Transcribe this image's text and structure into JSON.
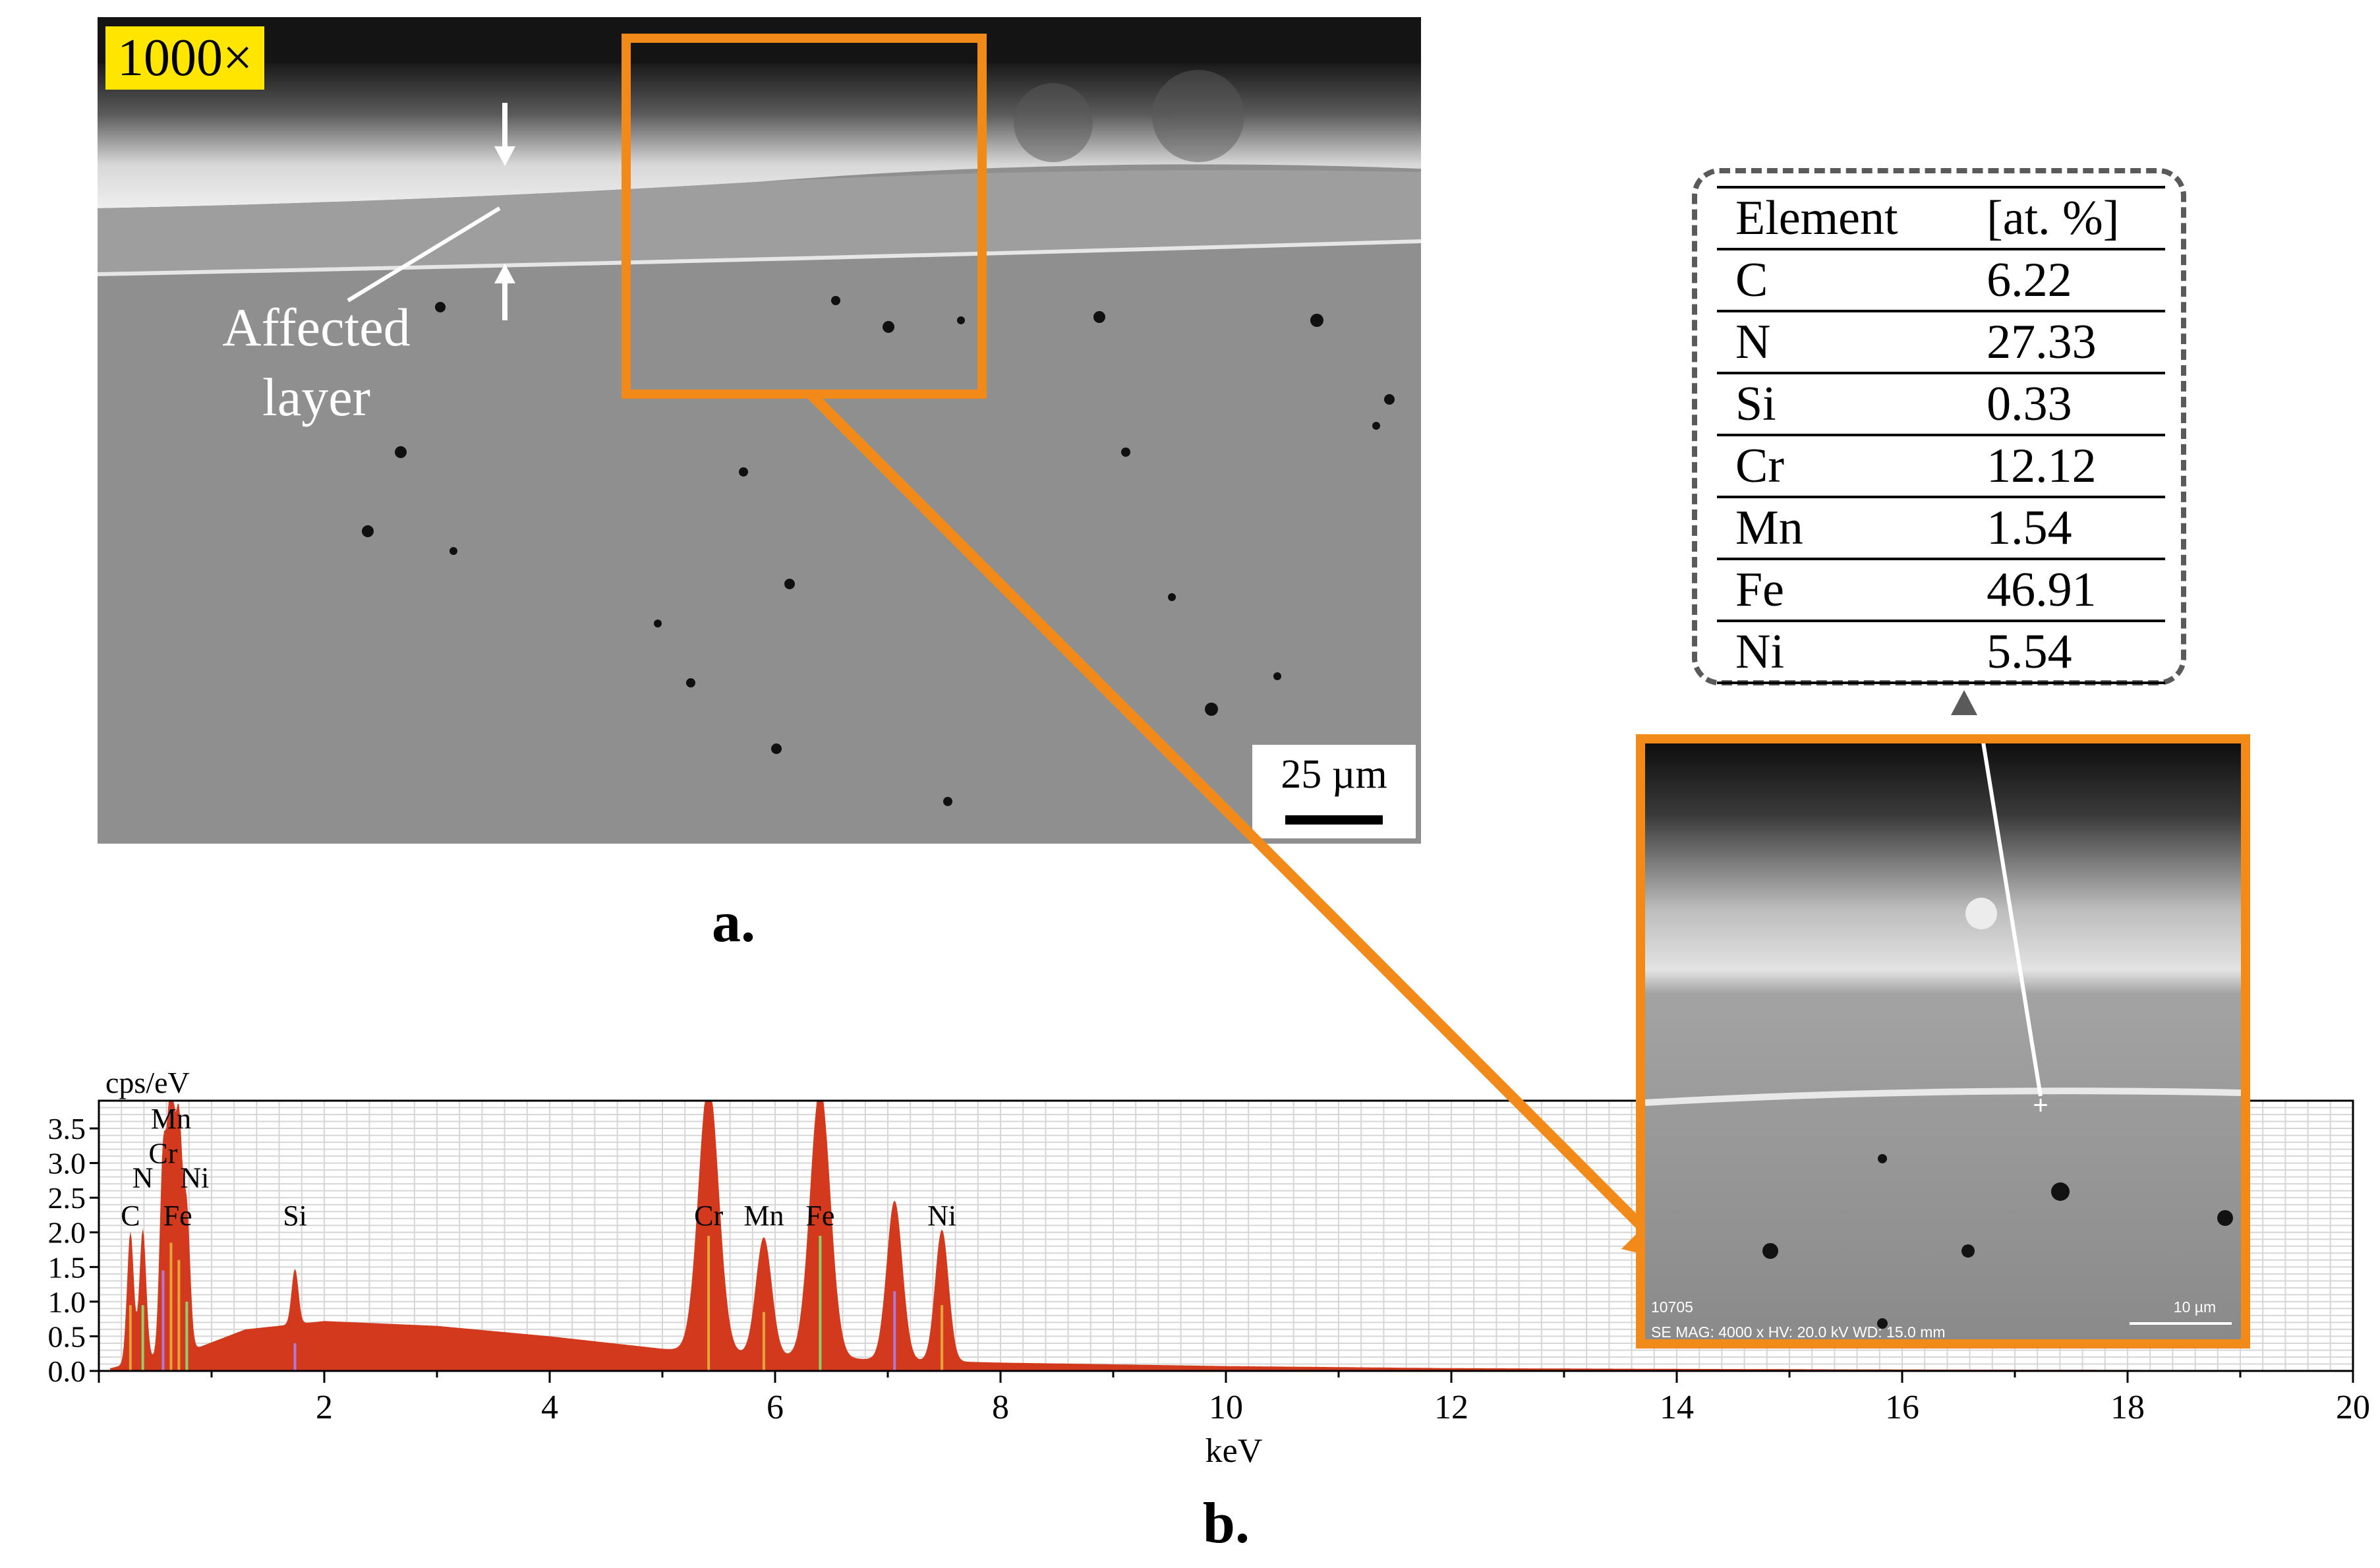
{
  "panel_a": {
    "magnification": "1000×",
    "scale_bar": "25 µm",
    "annotation_line1": "Affected",
    "annotation_line2": "layer",
    "caption": "a."
  },
  "inset": {
    "meta_id": "10705",
    "meta_line": "SE  MAG: 4000 x  HV: 20.0 kV  WD: 15.0 mm",
    "scale_bar": "10 µm"
  },
  "composition_table": {
    "headers": [
      "Element",
      "[at. %]"
    ],
    "rows": [
      {
        "element": "C",
        "value": "6.22"
      },
      {
        "element": "N",
        "value": "27.33"
      },
      {
        "element": "Si",
        "value": "0.33"
      },
      {
        "element": "Cr",
        "value": "12.12"
      },
      {
        "element": "Mn",
        "value": "1.54"
      },
      {
        "element": "Fe",
        "value": "46.91"
      },
      {
        "element": "Ni",
        "value": "5.54"
      }
    ]
  },
  "colors": {
    "accent_orange": "#f28a1a",
    "spectrum_red": "#d3391c",
    "callout_gray": "#5a5a5a"
  },
  "chart_data": {
    "type": "area",
    "ylabel": "cps/eV",
    "xlabel": "keV",
    "xlim": [
      0,
      20
    ],
    "ylim": [
      0,
      3.9
    ],
    "x_ticks": [
      2,
      4,
      6,
      8,
      10,
      12,
      14,
      16,
      18,
      20
    ],
    "y_ticks": [
      0.0,
      0.5,
      1.0,
      1.5,
      2.0,
      2.5,
      3.0,
      3.5
    ],
    "y_tick_labels": [
      "0.0",
      "0.5",
      "1.0",
      "1.5",
      "2.0",
      "2.5",
      "3.0",
      "3.5"
    ],
    "grid": true,
    "background_level": [
      {
        "kev": 0.9,
        "cps": 0.35
      },
      {
        "kev": 1.3,
        "cps": 0.6
      },
      {
        "kev": 2.0,
        "cps": 0.72
      },
      {
        "kev": 3.0,
        "cps": 0.65
      },
      {
        "kev": 4.0,
        "cps": 0.5
      },
      {
        "kev": 5.0,
        "cps": 0.32
      },
      {
        "kev": 6.0,
        "cps": 0.22
      },
      {
        "kev": 7.0,
        "cps": 0.16
      },
      {
        "kev": 8.0,
        "cps": 0.12
      },
      {
        "kev": 10.0,
        "cps": 0.07
      },
      {
        "kev": 12.0,
        "cps": 0.04
      },
      {
        "kev": 16.0,
        "cps": 0.02
      },
      {
        "kev": 20.0,
        "cps": 0.01
      }
    ],
    "peaks": [
      {
        "kev": 0.28,
        "height": 1.9,
        "width": 0.03
      },
      {
        "kev": 0.39,
        "height": 1.9,
        "width": 0.03
      },
      {
        "kev": 0.57,
        "height": 2.9,
        "width": 0.03
      },
      {
        "kev": 0.64,
        "height": 3.7,
        "width": 0.03
      },
      {
        "kev": 0.71,
        "height": 3.2,
        "width": 0.03
      },
      {
        "kev": 0.78,
        "height": 2.0,
        "width": 0.03
      },
      {
        "kev": 1.74,
        "height": 0.8,
        "width": 0.03
      },
      {
        "kev": 5.41,
        "height": 3.9,
        "width": 0.09
      },
      {
        "kev": 5.9,
        "height": 1.7,
        "width": 0.07
      },
      {
        "kev": 6.4,
        "height": 3.9,
        "width": 0.09
      },
      {
        "kev": 7.06,
        "height": 2.3,
        "width": 0.07
      },
      {
        "kev": 7.48,
        "height": 1.9,
        "width": 0.06
      }
    ],
    "line_labels": [
      {
        "text": "C",
        "kev": 0.28,
        "cps": 2.1
      },
      {
        "text": "N",
        "kev": 0.39,
        "cps": 2.65
      },
      {
        "text": "Cr",
        "kev": 0.57,
        "cps": 3.0
      },
      {
        "text": "Mn",
        "kev": 0.64,
        "cps": 3.5
      },
      {
        "text": "Ni",
        "kev": 0.85,
        "cps": 2.65
      },
      {
        "text": "Fe",
        "kev": 0.7,
        "cps": 2.1
      },
      {
        "text": "Si",
        "kev": 1.74,
        "cps": 2.1
      },
      {
        "text": "Cr",
        "kev": 5.41,
        "cps": 2.1
      },
      {
        "text": "Mn",
        "kev": 5.9,
        "cps": 2.1
      },
      {
        "text": "Fe",
        "kev": 6.4,
        "cps": 2.1
      },
      {
        "text": "Ni",
        "kev": 7.48,
        "cps": 2.1
      }
    ],
    "caption": "b."
  }
}
